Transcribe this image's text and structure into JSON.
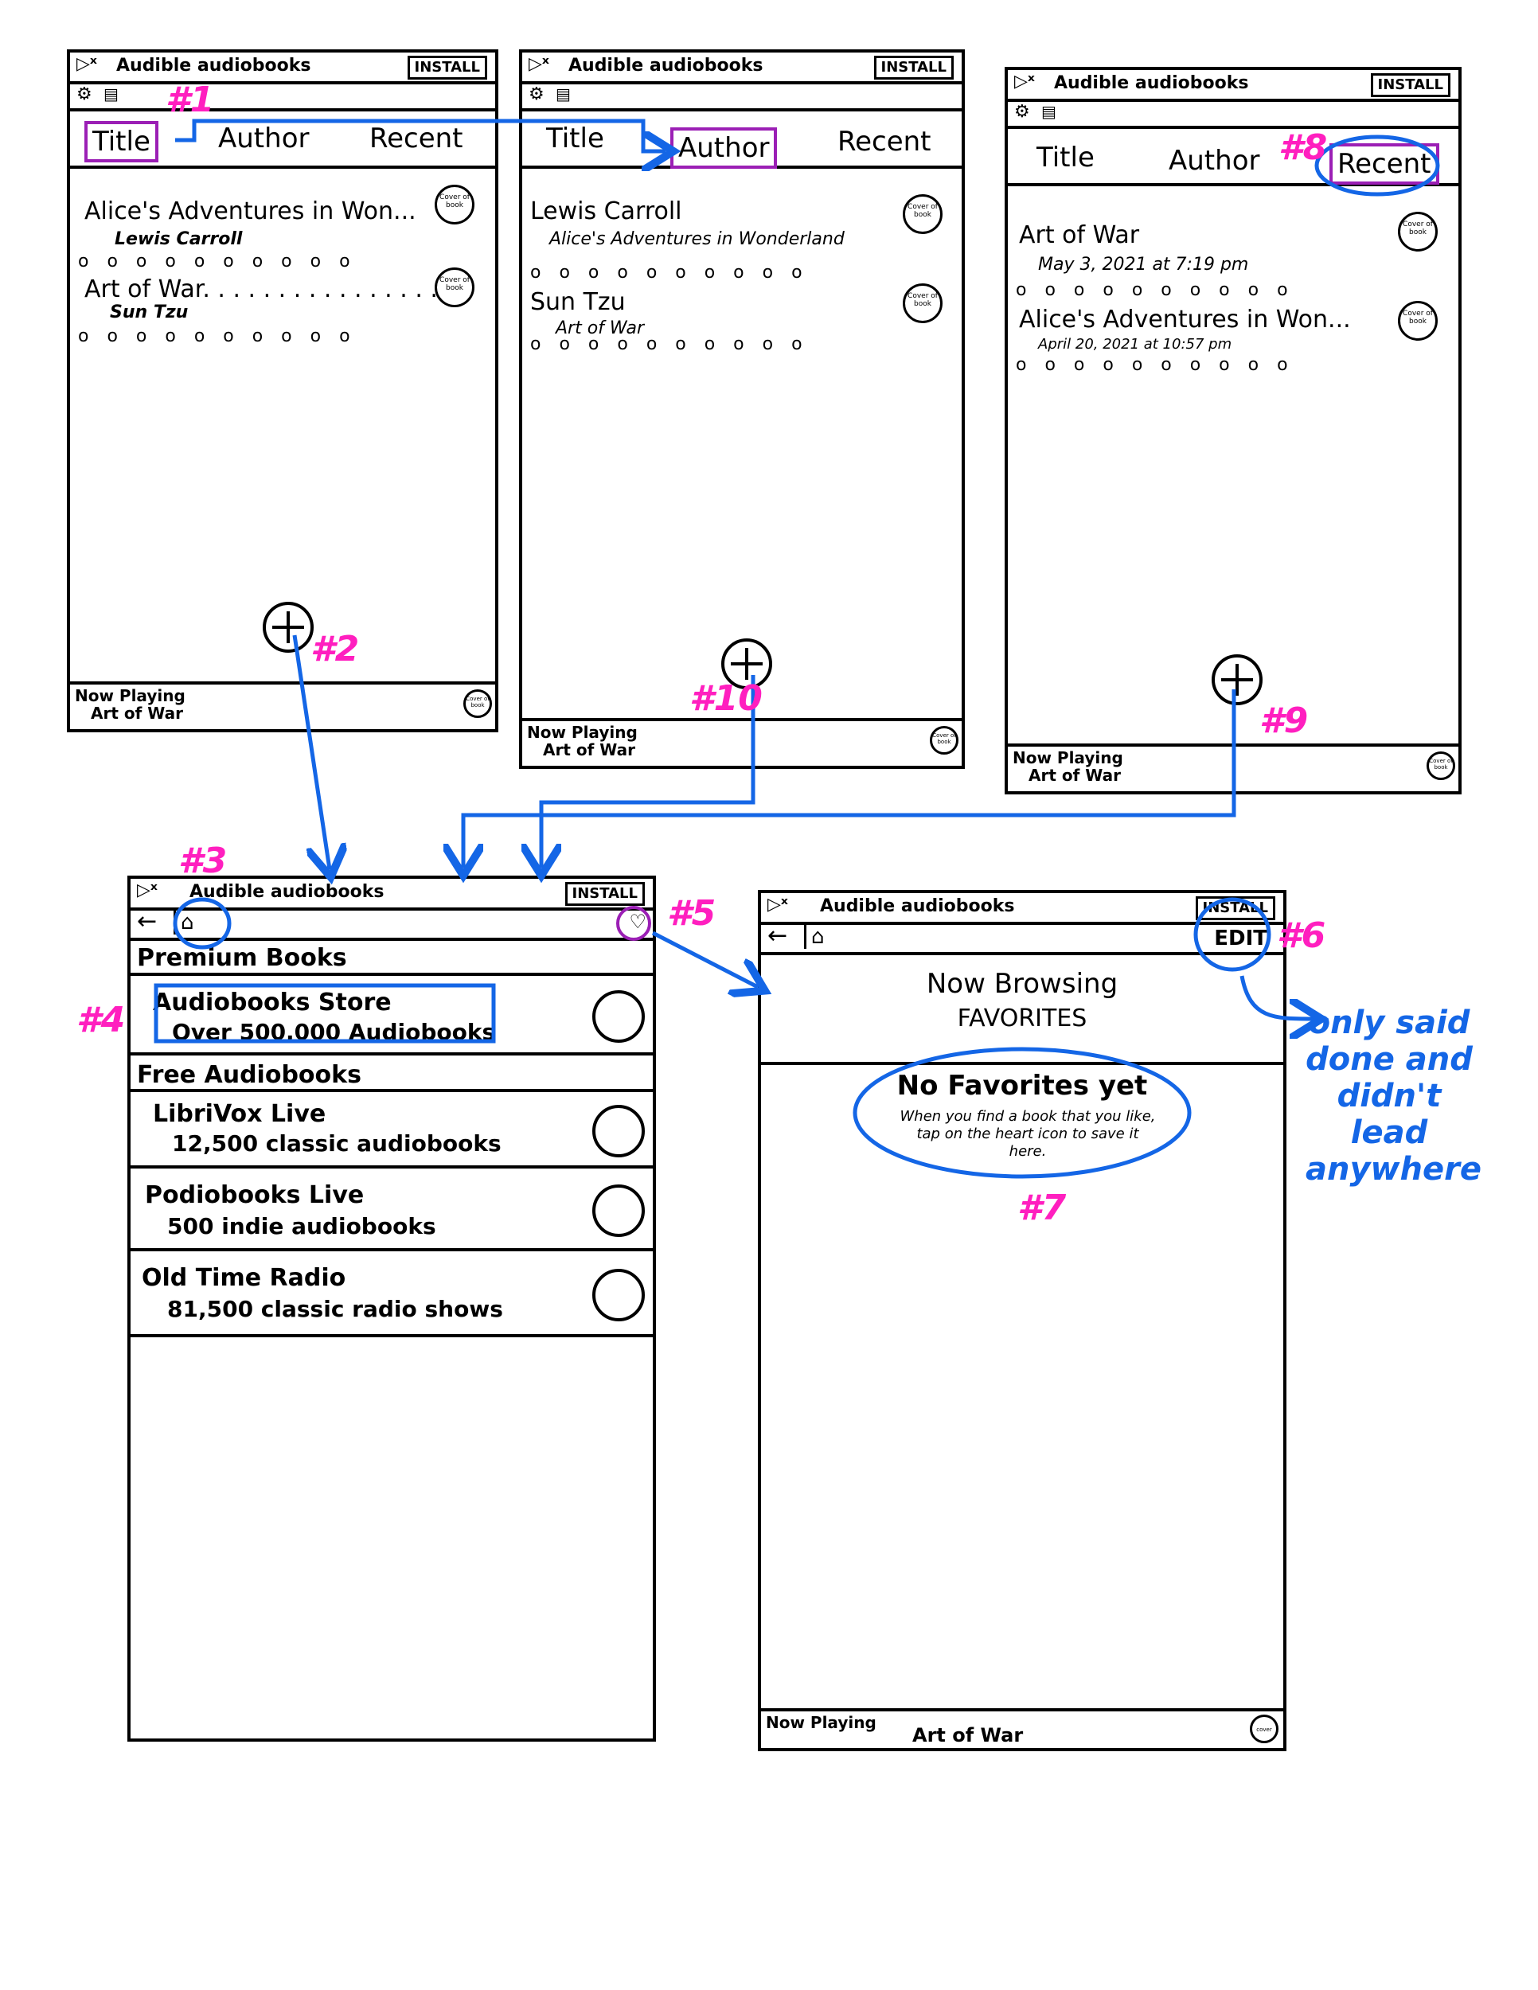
{
  "app": {
    "title": "Audible audiobooks",
    "install_label": "INSTALL",
    "now_playing_label": "Now Playing",
    "now_playing_title": "Art of War",
    "cover_label": "Cover of book",
    "cover_short": "cover"
  },
  "screen_title": {
    "tabs": [
      "Title",
      "Author",
      "Recent"
    ],
    "entries": [
      {
        "title": "Alice's Adventures in Won...",
        "sub": "Lewis Carroll"
      },
      {
        "title": "Art of War. . . . . . . . . . . . . . . .",
        "sub": "Sun Tzu"
      }
    ]
  },
  "screen_author": {
    "tabs": [
      "Title",
      "Author",
      "Recent"
    ],
    "entries": [
      {
        "title": "Lewis Carroll",
        "sub": "Alice's Adventures in Wonderland"
      },
      {
        "title": "Sun Tzu",
        "sub": "Art of War"
      }
    ]
  },
  "screen_recent": {
    "tabs": [
      "Title",
      "Author",
      "Recent"
    ],
    "entries": [
      {
        "title": "Art of War",
        "sub": "May 3, 2021 at 7:19 pm"
      },
      {
        "title": "Alice's Adventures in Won...",
        "sub": "April 20, 2021 at 10:57 pm"
      }
    ]
  },
  "dots": "o o o o o o o o o o",
  "screen_store": {
    "premium_header": "Premium Books",
    "free_header": "Free Audiobooks",
    "rows": [
      {
        "title": "Audiobooks Store",
        "sub": "Over 500,000 Audiobooks"
      },
      {
        "title": "LibriVox Live",
        "sub": "12,500 classic audiobooks"
      },
      {
        "title": "Podiobooks Live",
        "sub": "500 indie audiobooks"
      },
      {
        "title": "Old Time Radio",
        "sub": "81,500 classic radio shows"
      }
    ]
  },
  "screen_favorites": {
    "edit_label": "EDIT",
    "heading1": "Now Browsing",
    "heading2": "FAVORITES",
    "empty_title": "No Favorites yet",
    "empty_body": "When you find a book that you like, tap on the heart icon to save it here."
  },
  "annotations": {
    "n1": "#1",
    "n2": "#2",
    "n3": "#3",
    "n4": "#4",
    "n5": "#5",
    "n6": "#6",
    "n7": "#7",
    "n8": "#8",
    "n9": "#9",
    "n10": "#10",
    "note": "only said done and didn't lead anywhere"
  },
  "colors": {
    "annotation_pink": "#ff1fbf",
    "annotation_blue": "#1466e6",
    "highlight_purple": "#9b1fb5"
  }
}
